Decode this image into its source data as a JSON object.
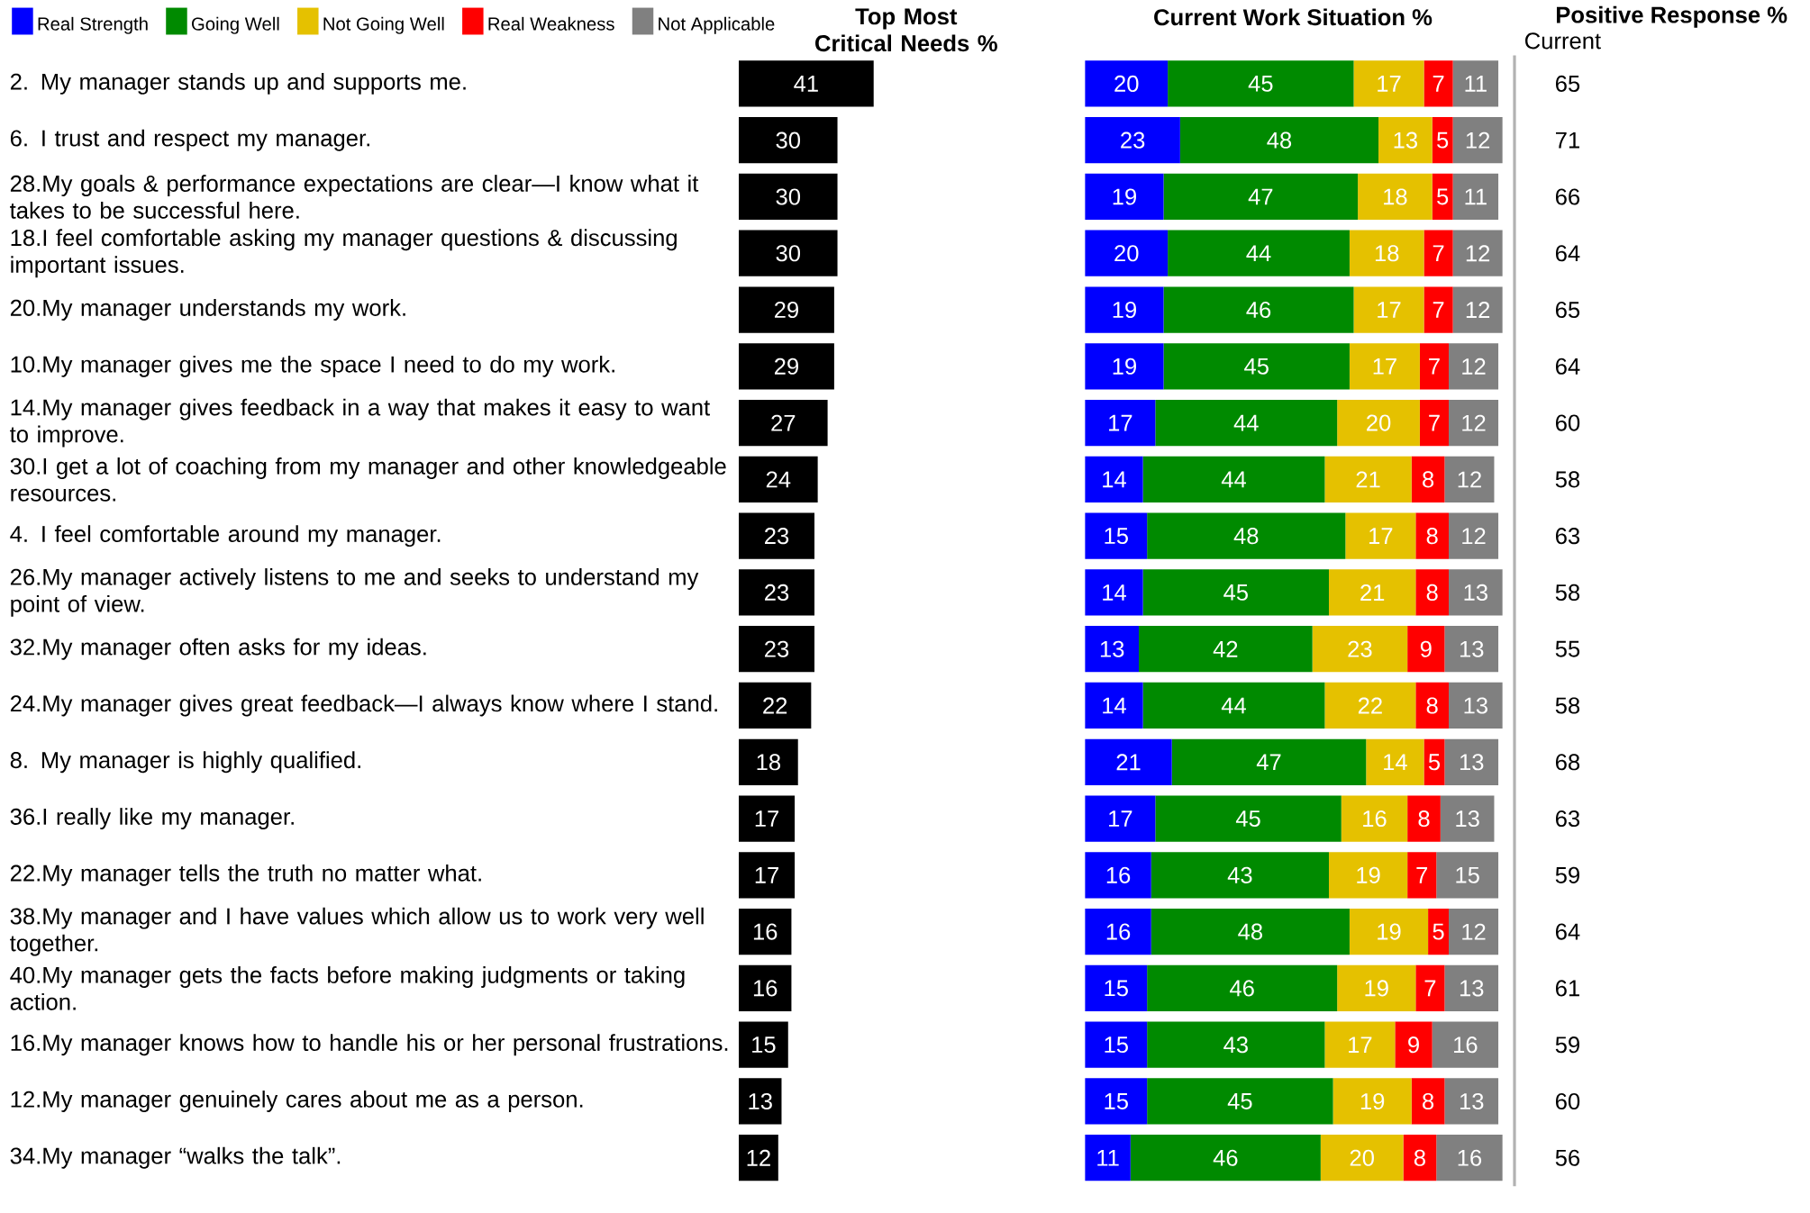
{
  "chart_data": [
    {
      "type": "bar",
      "orientation": "horizontal",
      "title": "Top Most Critical Needs %",
      "color": "#000000",
      "data_labels": true,
      "categories": [
        "2.  My manager stands up and supports me.",
        "6.  I trust and respect my manager.",
        "28.My goals & performance expectations are clear—I know what it takes to be successful here.",
        "18.I feel comfortable asking my manager questions & discussing important issues.",
        "20.My manager understands my work.",
        "10.My manager gives me the space I need to do my work.",
        "14.My manager gives feedback in a way that makes it easy to want to improve.",
        "30.I get a lot of coaching from my manager and other knowledgeable resources.",
        "4.  I feel comfortable around my manager.",
        "26.My manager actively listens to me and seeks to understand my point of view.",
        "32.My manager often asks for my ideas.",
        "24.My manager gives great feedback—I always know where I stand.",
        "8.  My manager is highly qualified.",
        "36.I really like my manager.",
        "22.My manager tells the truth no matter what.",
        "38.My manager and I have values which allow us to work very well together.",
        "40.My manager gets the facts before making judgments or taking action.",
        "16.My manager knows how to handle his or her personal frustrations.",
        "12.My manager genuinely cares about me as a person.",
        "34.My manager “walks the talk”."
      ],
      "values": [
        41,
        30,
        30,
        30,
        29,
        29,
        27,
        24,
        23,
        23,
        23,
        22,
        18,
        17,
        17,
        16,
        16,
        15,
        13,
        12
      ]
    },
    {
      "type": "bar",
      "orientation": "horizontal",
      "stacked": true,
      "title": "Current Work Situation %",
      "data_labels": true,
      "legend": "top left",
      "series": [
        {
          "name": "Real Strength",
          "color": "#0000ff",
          "values": [
            20,
            23,
            19,
            20,
            19,
            19,
            17,
            14,
            15,
            14,
            13,
            14,
            21,
            17,
            16,
            16,
            15,
            15,
            15,
            11
          ]
        },
        {
          "name": "Going Well",
          "color": "#008a00",
          "values": [
            45,
            48,
            47,
            44,
            46,
            45,
            44,
            44,
            48,
            45,
            42,
            44,
            47,
            45,
            43,
            48,
            46,
            43,
            45,
            46
          ]
        },
        {
          "name": "Not Going Well",
          "color": "#e5c100",
          "values": [
            17,
            13,
            18,
            18,
            17,
            17,
            20,
            21,
            17,
            21,
            23,
            22,
            14,
            16,
            19,
            19,
            19,
            17,
            19,
            20
          ]
        },
        {
          "name": "Real Weakness",
          "color": "#ff0000",
          "values": [
            7,
            5,
            5,
            7,
            7,
            7,
            7,
            8,
            8,
            8,
            9,
            8,
            5,
            8,
            7,
            5,
            7,
            9,
            8,
            8
          ]
        },
        {
          "name": "Not Applicable",
          "color": "#808080",
          "values": [
            11,
            12,
            11,
            12,
            12,
            12,
            12,
            12,
            12,
            13,
            13,
            13,
            13,
            13,
            15,
            12,
            13,
            16,
            13,
            16
          ]
        }
      ]
    },
    {
      "type": "other",
      "title": "Positive Response %",
      "subtitle": "Current",
      "data_labels": true,
      "values": [
        65,
        71,
        66,
        64,
        65,
        64,
        60,
        58,
        63,
        58,
        55,
        58,
        68,
        63,
        59,
        64,
        61,
        59,
        60,
        56
      ]
    }
  ]
}
